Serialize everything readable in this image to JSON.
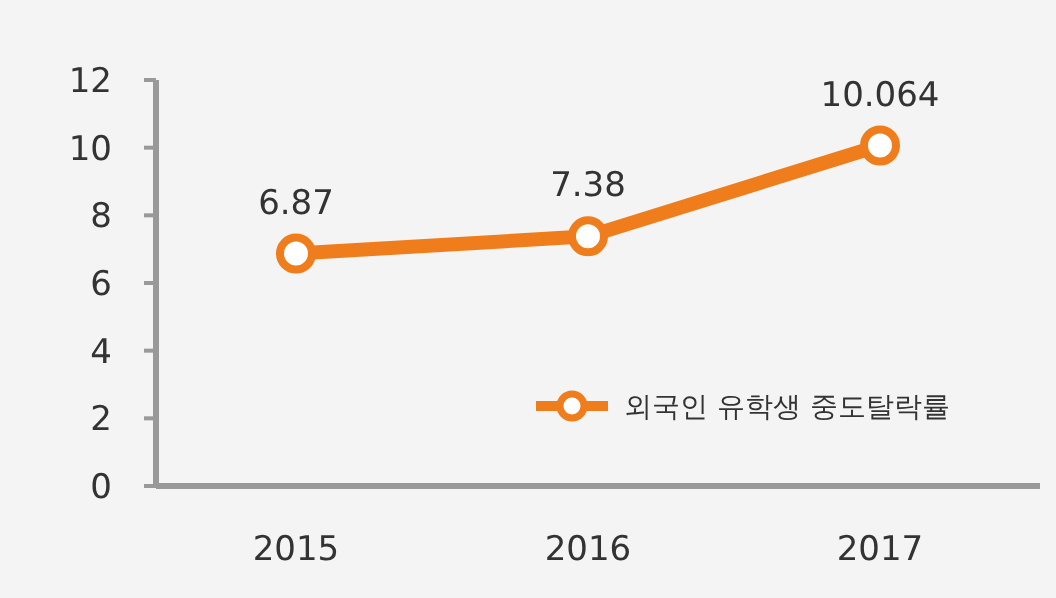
{
  "chart_data": {
    "type": "line",
    "categories": [
      "2015",
      "2016",
      "2017"
    ],
    "series": [
      {
        "name": "외국인 유학생 중도탈락률",
        "color": "#f07d1c",
        "values": [
          6.87,
          7.38,
          10.064
        ]
      }
    ],
    "ylim": [
      0,
      12
    ],
    "yticks": [
      0,
      2,
      4,
      6,
      8,
      10,
      12
    ],
    "marker": "circle",
    "data_labels": true,
    "grid": false,
    "legend": "bottom right"
  }
}
